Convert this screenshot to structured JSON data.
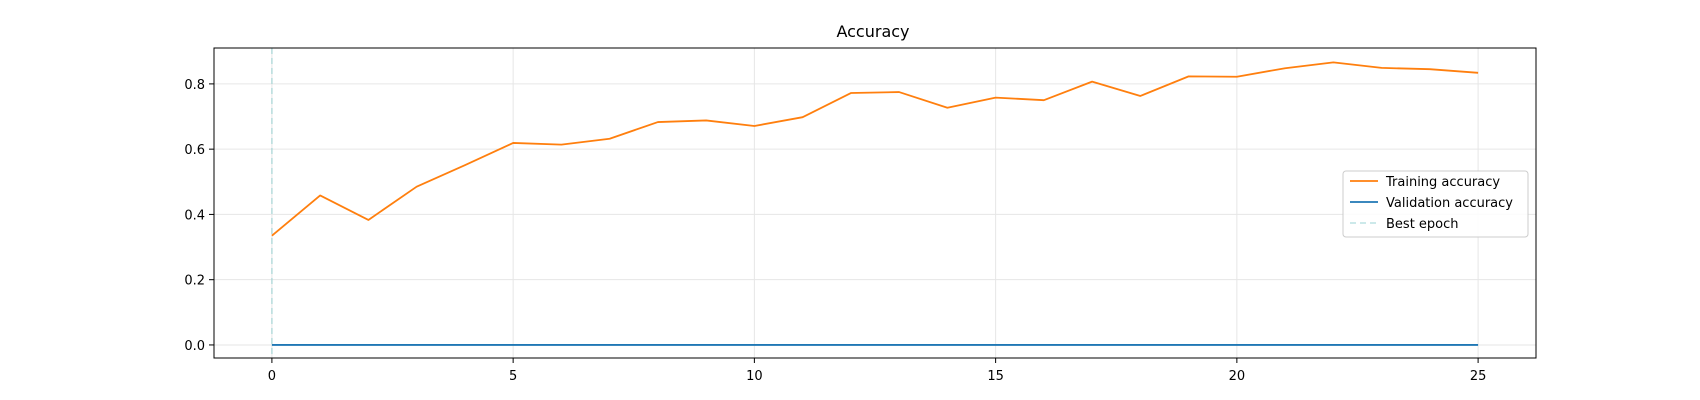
{
  "chart_data": {
    "type": "line",
    "title": "Accuracy",
    "xlabel": "",
    "ylabel": "",
    "xlim": [
      -1.2,
      26.2
    ],
    "ylim": [
      -0.04,
      0.91
    ],
    "xticks": [
      0,
      5,
      10,
      15,
      20,
      25
    ],
    "yticks": [
      0.0,
      0.2,
      0.4,
      0.6,
      0.8
    ],
    "ytick_labels": [
      "0.0",
      "0.2",
      "0.4",
      "0.6",
      "0.8"
    ],
    "grid": true,
    "legend_position": "right",
    "x": [
      0,
      1,
      2,
      3,
      4,
      5,
      6,
      7,
      8,
      9,
      10,
      11,
      12,
      13,
      14,
      15,
      16,
      17,
      18,
      19,
      20,
      21,
      22,
      23,
      24,
      25
    ],
    "series": [
      {
        "name": "Training accuracy",
        "color": "#ff7f0e",
        "values": [
          0.335,
          0.458,
          0.383,
          0.485,
          0.551,
          0.619,
          0.614,
          0.632,
          0.683,
          0.688,
          0.671,
          0.698,
          0.772,
          0.775,
          0.727,
          0.758,
          0.75,
          0.807,
          0.763,
          0.823,
          0.822,
          0.848,
          0.866,
          0.849,
          0.845,
          0.834
        ]
      },
      {
        "name": "Validation accuracy",
        "color": "#1f77b4",
        "values": [
          0,
          0,
          0,
          0,
          0,
          0,
          0,
          0,
          0,
          0,
          0,
          0,
          0,
          0,
          0,
          0,
          0,
          0,
          0,
          0,
          0,
          0,
          0,
          0,
          0,
          0
        ]
      }
    ],
    "best_epoch": {
      "name": "Best epoch",
      "x": 0,
      "color": "#8fcfd1"
    }
  }
}
